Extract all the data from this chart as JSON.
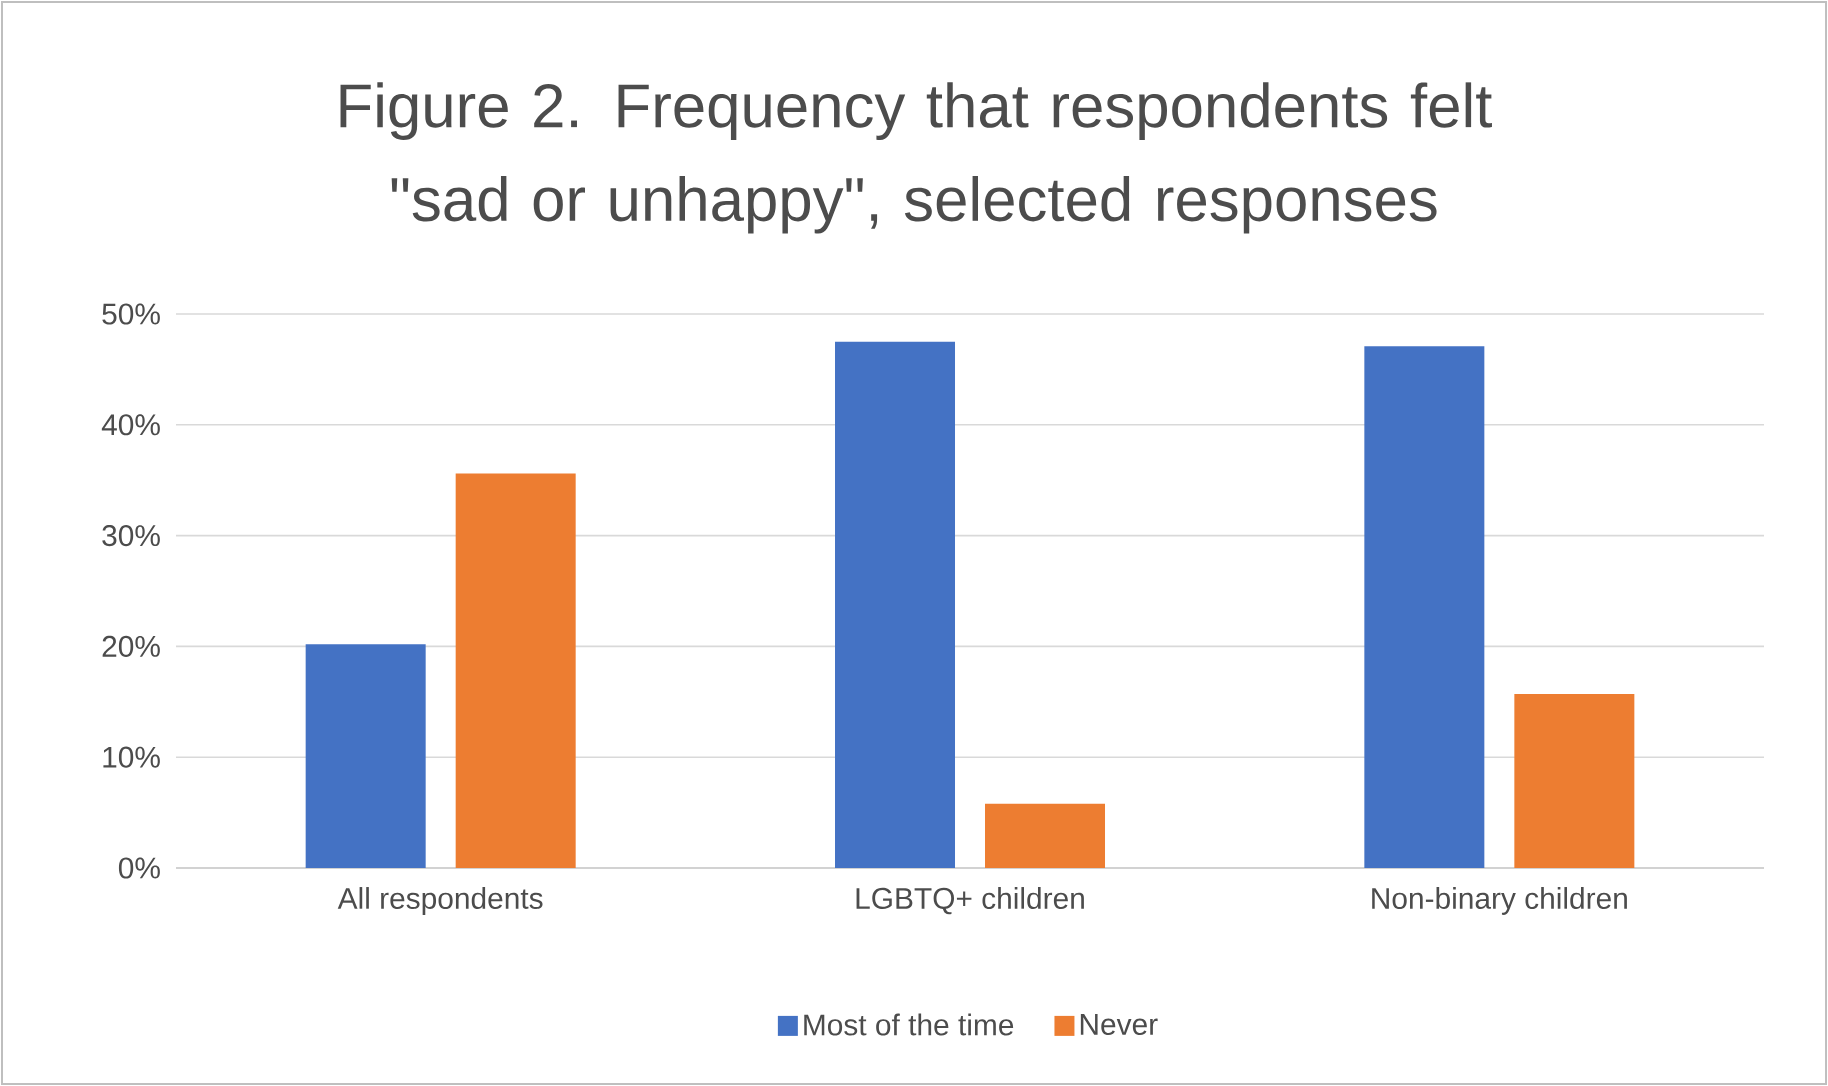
{
  "chart_data": {
    "type": "bar",
    "title": "Figure 2. Frequency that respondents felt \"sad or unhappy\", selected responses",
    "categories": [
      "All respondents",
      "LGBTQ+ children",
      "Non-binary children"
    ],
    "series": [
      {
        "name": "Most of the time",
        "color": "#4472c4",
        "values": [
          20.2,
          47.5,
          47.1
        ]
      },
      {
        "name": "Never",
        "color": "#ed7d31",
        "values": [
          35.6,
          5.8,
          15.7
        ]
      }
    ],
    "ylim": [
      0,
      50
    ],
    "yticks": [
      {
        "value": 0,
        "label": "0%"
      },
      {
        "value": 10,
        "label": "10%"
      },
      {
        "value": 20,
        "label": "20%"
      },
      {
        "value": 30,
        "label": "30%"
      },
      {
        "value": 40,
        "label": "40%"
      },
      {
        "value": 50,
        "label": "50%"
      }
    ],
    "grid": "y",
    "legend": "bottom"
  }
}
